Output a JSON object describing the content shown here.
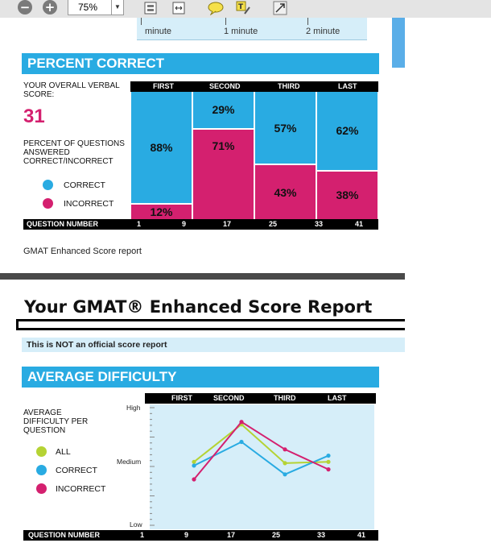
{
  "toolbar": {
    "zoom": "75%",
    "icons": [
      "zoom-out-icon",
      "zoom-in-icon",
      "zoom-dropdown-icon",
      "fit-page-icon",
      "fit-width-icon",
      "comment-icon",
      "highlight-note-icon",
      "expand-icon"
    ]
  },
  "time_axis": {
    "labels": [
      "minute",
      "1 minute",
      "2 minute"
    ]
  },
  "percent_correct": {
    "header": "PERCENT CORRECT",
    "score_label": "YOUR OVERALL VERBAL SCORE:",
    "score": "31",
    "pct_label": "PERCENT OF QUESTIONS ANSWERED CORRECT/INCORRECT",
    "legend": [
      {
        "label": "CORRECT",
        "color": "#29abe2"
      },
      {
        "label": "INCORRECT",
        "color": "#d4206f"
      }
    ],
    "columns": [
      "FIRST",
      "SECOND",
      "THIRD",
      "LAST"
    ],
    "question_number_label": "QUESTION NUMBER",
    "question_numbers": [
      "1",
      "9",
      "17",
      "25",
      "33",
      "41"
    ],
    "footer": "GMAT Enhanced Score report"
  },
  "chart_data": [
    {
      "type": "bar",
      "title": "PERCENT CORRECT",
      "stacked": true,
      "categories": [
        "FIRST",
        "SECOND",
        "THIRD",
        "LAST"
      ],
      "series": [
        {
          "name": "CORRECT",
          "color": "#29abe2",
          "values": [
            88,
            29,
            57,
            62
          ],
          "labels": [
            "88%",
            "29%",
            "57%",
            "62%"
          ]
        },
        {
          "name": "INCORRECT",
          "color": "#d4206f",
          "values": [
            12,
            71,
            43,
            38
          ],
          "labels": [
            "12%",
            "71%",
            "43%",
            "38%"
          ]
        }
      ],
      "xlabel": "QUESTION NUMBER",
      "xticks": [
        "1",
        "9",
        "17",
        "25",
        "33",
        "41"
      ],
      "ylim": [
        0,
        100
      ]
    },
    {
      "type": "line",
      "title": "AVERAGE DIFFICULTY",
      "ylabel": "AVERAGE DIFFICULTY PER QUESTION",
      "yticks": [
        "High",
        "Medium",
        "Low"
      ],
      "ylim": [
        0,
        100
      ],
      "x": [
        1,
        2,
        3,
        4
      ],
      "categories": [
        "FIRST",
        "SECOND",
        "THIRD",
        "LAST"
      ],
      "series": [
        {
          "name": "ALL",
          "color": "#b5d334",
          "values": [
            54,
            84,
            53,
            54
          ]
        },
        {
          "name": "CORRECT",
          "color": "#29abe2",
          "values": [
            51,
            70,
            44,
            59
          ]
        },
        {
          "name": "INCORRECT",
          "color": "#d4206f",
          "values": [
            40,
            86,
            64,
            48
          ]
        }
      ],
      "xlabel": "QUESTION NUMBER",
      "xticks": [
        "1",
        "9",
        "17",
        "25",
        "33",
        "41"
      ]
    }
  ],
  "report": {
    "title": "Your GMAT® Enhanced Score Report",
    "notice": "This is NOT an official score report"
  },
  "avg_difficulty": {
    "header": "AVERAGE DIFFICULTY",
    "label": "AVERAGE DIFFICULTY PER QUESTION",
    "legend": [
      {
        "label": "ALL",
        "color": "#b5d334"
      },
      {
        "label": "CORRECT",
        "color": "#29abe2"
      },
      {
        "label": "INCORRECT",
        "color": "#d4206f"
      }
    ],
    "columns": [
      "FIRST",
      "SECOND",
      "THIRD",
      "LAST"
    ],
    "y_labels": [
      "High",
      "Medium",
      "Low"
    ],
    "question_number_label": "QUESTION NUMBER",
    "question_numbers": [
      "1",
      "9",
      "17",
      "25",
      "33",
      "41"
    ]
  }
}
